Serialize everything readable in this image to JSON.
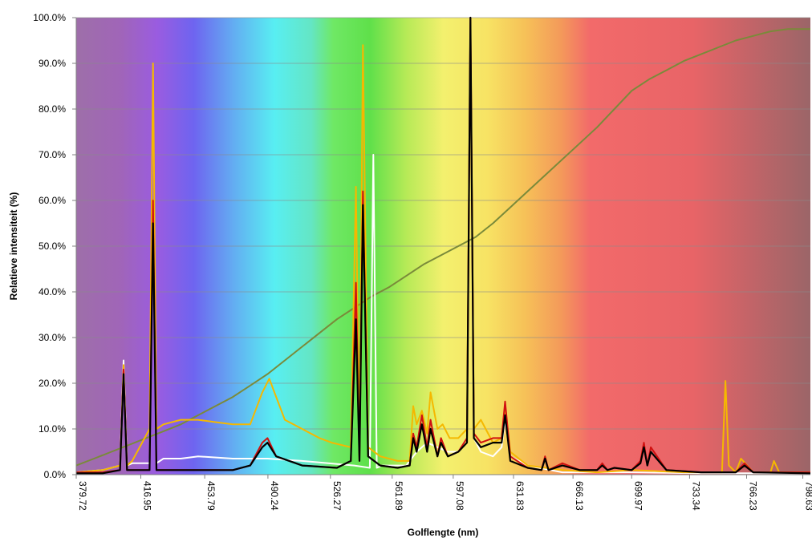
{
  "chart_data": {
    "type": "line",
    "title": "",
    "xlabel": "Golflengte (nm)",
    "ylabel": "Relatieve intensiteit (%)",
    "xlim": [
      379.72,
      803.0
    ],
    "ylim": [
      0,
      100
    ],
    "x_ticks": [
      "379.72",
      "416.95",
      "453.79",
      "490.24",
      "526.27",
      "561.89",
      "597.08",
      "631.83",
      "666.13",
      "699.97",
      "733.34",
      "766.23",
      "798.63"
    ],
    "x_tick_values": [
      379.72,
      416.95,
      453.79,
      490.24,
      526.27,
      561.89,
      597.08,
      631.83,
      666.13,
      699.97,
      733.34,
      766.23,
      798.63
    ],
    "y_ticks": [
      "0.0%",
      "10.0%",
      "20.0%",
      "30.0%",
      "40.0%",
      "50.0%",
      "60.0%",
      "70.0%",
      "80.0%",
      "90.0%",
      "100.0%"
    ],
    "y_tick_values": [
      0,
      10,
      20,
      30,
      40,
      50,
      60,
      70,
      80,
      90,
      100
    ],
    "grid": true,
    "legend": "none",
    "background": "visible-spectrum gradient",
    "series": [
      {
        "color": "#7a8a3a",
        "x": [
          379.7,
          390,
          400,
          410,
          420,
          430,
          440,
          450,
          460,
          470,
          480,
          490,
          500,
          510,
          520,
          530,
          540,
          550,
          560,
          570,
          580,
          590,
          600,
          610,
          620,
          630,
          640,
          650,
          660,
          670,
          680,
          690,
          700,
          710,
          720,
          730,
          740,
          750,
          760,
          770,
          780,
          790,
          800,
          803
        ],
        "y": [
          2,
          3.5,
          5,
          6.5,
          8,
          9.5,
          11,
          13,
          15,
          17,
          19.5,
          22,
          25,
          28,
          31,
          34,
          36.5,
          39,
          41,
          43.5,
          46,
          48,
          50,
          52,
          55,
          58.5,
          62,
          65.5,
          69,
          72.5,
          76,
          80,
          84,
          86.5,
          88.5,
          90.5,
          92,
          93.5,
          95,
          96,
          97,
          97.5,
          97.5,
          97.5
        ]
      },
      {
        "color": "#ffffff",
        "x": [
          379.7,
          395,
          405,
          407,
          409,
          412,
          422,
          424,
          426,
          430,
          440,
          450,
          470,
          490,
          510,
          525,
          540,
          549,
          551,
          553,
          556,
          565,
          570,
          576,
          582,
          588,
          594,
          600,
          605,
          607,
          609,
          613,
          620,
          625,
          627,
          630,
          640,
          660,
          700,
          740,
          770,
          800,
          803
        ],
        "y": [
          0.5,
          1,
          2,
          25,
          2,
          2.5,
          2.5,
          60,
          2.5,
          3.5,
          3.5,
          4,
          3.5,
          3.5,
          3,
          2.5,
          2,
          1.5,
          70,
          1.5,
          2,
          2,
          2,
          5,
          7,
          6,
          5,
          5,
          8,
          100,
          8,
          5,
          4,
          6,
          12,
          4,
          2,
          0.5,
          0.5,
          0.3,
          0.3,
          0.3,
          0.3
        ]
      },
      {
        "color": "#f5b800",
        "x": [
          379.7,
          395,
          405,
          407,
          409,
          412,
          422,
          424,
          426,
          430,
          440,
          450,
          460,
          470,
          480,
          487,
          491,
          495,
          500,
          510,
          520,
          527,
          538,
          541,
          543,
          545,
          548,
          555,
          565,
          572,
          574,
          576,
          579,
          582,
          584,
          588,
          591,
          595,
          600,
          605,
          607,
          609,
          613,
          620,
          625,
          627,
          630,
          640,
          660,
          680,
          700,
          730,
          752,
          754,
          756,
          760,
          763,
          770,
          780,
          782,
          785,
          803
        ],
        "y": [
          0.5,
          1,
          2,
          24,
          2,
          3,
          10,
          90,
          10,
          11,
          12,
          12,
          11.5,
          11,
          11,
          18,
          21,
          17,
          12,
          10,
          8,
          7,
          6,
          63,
          5,
          94,
          6,
          4,
          3,
          3,
          15,
          11,
          14,
          9,
          18,
          10,
          11,
          8,
          8,
          10,
          100,
          10,
          12,
          7,
          8,
          15,
          5,
          2,
          1,
          0.5,
          1,
          0.5,
          0.5,
          20.5,
          2,
          0.5,
          3.5,
          0.5,
          0.5,
          3,
          0.5,
          0.5
        ]
      },
      {
        "color": "#d01010",
        "x": [
          379.7,
          395,
          405,
          407,
          409,
          412,
          422,
          424,
          426,
          430,
          450,
          470,
          480,
          487,
          490,
          495,
          510,
          530,
          538,
          541,
          543,
          545,
          548,
          555,
          565,
          572,
          574,
          576,
          579,
          582,
          584,
          588,
          590,
          594,
          600,
          605,
          607,
          609,
          613,
          620,
          625,
          627,
          630,
          640,
          648,
          650,
          652,
          660,
          670,
          680,
          683,
          686,
          690,
          700,
          705,
          707,
          709,
          711,
          720,
          740,
          760,
          765,
          770,
          803
        ],
        "y": [
          0.5,
          0.5,
          1,
          23,
          1,
          1,
          1,
          60,
          1,
          1,
          1,
          1,
          2,
          7,
          8,
          4,
          2,
          1.5,
          3,
          42,
          3,
          62,
          4,
          2,
          1.5,
          2,
          9,
          6,
          13,
          6,
          12,
          4,
          8,
          4,
          5,
          8,
          100,
          9,
          7,
          8,
          8,
          16,
          4,
          1.5,
          1,
          4,
          1,
          2.5,
          1,
          1,
          2.5,
          1,
          1.5,
          1,
          3,
          7,
          2,
          6,
          1,
          0.5,
          0.5,
          2.5,
          0.5,
          0.5
        ]
      },
      {
        "color": "#000000",
        "x": [
          379.7,
          395,
          405,
          407,
          409,
          412,
          422,
          424,
          426,
          430,
          450,
          470,
          480,
          487,
          490,
          495,
          510,
          530,
          538,
          541,
          543,
          545,
          548,
          555,
          565,
          572,
          574,
          576,
          579,
          582,
          584,
          588,
          590,
          594,
          600,
          605,
          607,
          609,
          613,
          620,
          625,
          627,
          630,
          640,
          648,
          650,
          652,
          660,
          670,
          680,
          683,
          686,
          690,
          700,
          705,
          707,
          709,
          711,
          720,
          740,
          760,
          765,
          770,
          803
        ],
        "y": [
          0.3,
          0.3,
          1,
          22,
          1,
          1,
          1,
          55,
          1,
          1,
          1,
          1,
          2,
          6,
          7,
          4,
          2,
          1.5,
          3,
          34,
          3,
          59,
          4,
          2,
          1.5,
          2,
          8,
          5,
          11,
          5,
          10,
          4,
          7,
          4,
          5,
          7,
          100,
          8,
          6,
          7,
          7,
          13,
          3,
          1.5,
          1,
          3.5,
          1,
          2,
          1,
          1,
          2,
          1,
          1.5,
          1,
          2.5,
          6,
          2,
          5,
          1,
          0.5,
          0.5,
          2,
          0.5,
          0.3
        ]
      }
    ]
  }
}
